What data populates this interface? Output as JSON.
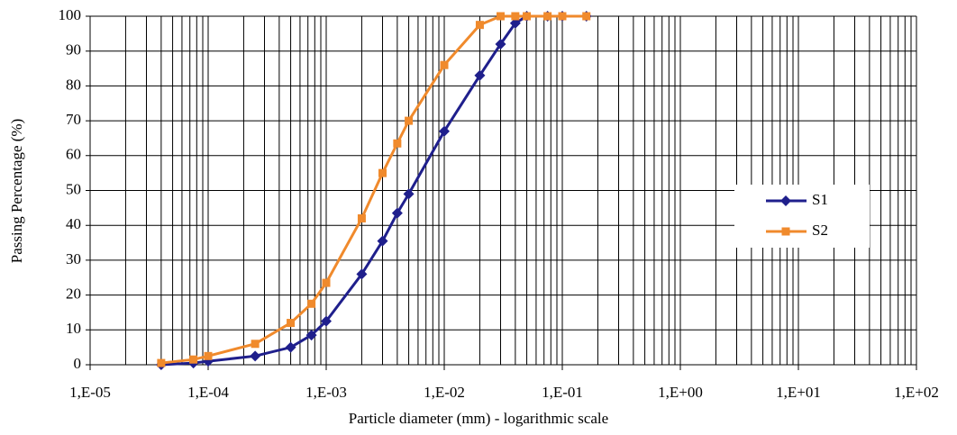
{
  "chart_data": {
    "type": "line",
    "xlabel": "Particle diameter (mm) - logarithmic scale",
    "ylabel": "Passing Percentage (%)",
    "xscale": "log",
    "x": [
      4e-05,
      7.5e-05,
      0.0001,
      0.00025,
      0.0005,
      0.00075,
      0.001,
      0.002,
      0.003,
      0.004,
      0.005,
      0.01,
      0.02,
      0.03,
      0.04,
      0.05,
      0.075,
      0.1,
      0.16
    ],
    "series": [
      {
        "name": "S1",
        "color": "#1f1f8c",
        "marker": "diamond",
        "values": [
          0,
          0.5,
          1,
          2.5,
          5,
          8.5,
          12.5,
          26,
          35.5,
          43.5,
          49,
          67,
          83,
          92,
          98,
          100,
          100,
          100,
          100
        ]
      },
      {
        "name": "S2",
        "color": "#f08a2c",
        "marker": "square",
        "values": [
          0.5,
          1.5,
          2.5,
          6,
          12,
          17.5,
          23.5,
          42,
          55,
          63.5,
          70,
          86,
          97.5,
          100,
          100,
          100,
          100,
          100,
          100
        ]
      }
    ],
    "xlim": [
      1e-05,
      100
    ],
    "xticks": [
      {
        "value": 1e-05,
        "label": "1,E-05"
      },
      {
        "value": 0.0001,
        "label": "1,E-04"
      },
      {
        "value": 0.001,
        "label": "1,E-03"
      },
      {
        "value": 0.01,
        "label": "1,E-02"
      },
      {
        "value": 0.1,
        "label": "1,E-01"
      },
      {
        "value": 1,
        "label": "1,E+00"
      },
      {
        "value": 10,
        "label": "1,E+01"
      },
      {
        "value": 100,
        "label": "1,E+02"
      }
    ],
    "ylim": [
      0,
      100
    ],
    "yticks": [
      0,
      10,
      20,
      30,
      40,
      50,
      60,
      70,
      80,
      90,
      100
    ],
    "grid": true,
    "legend": "right"
  }
}
